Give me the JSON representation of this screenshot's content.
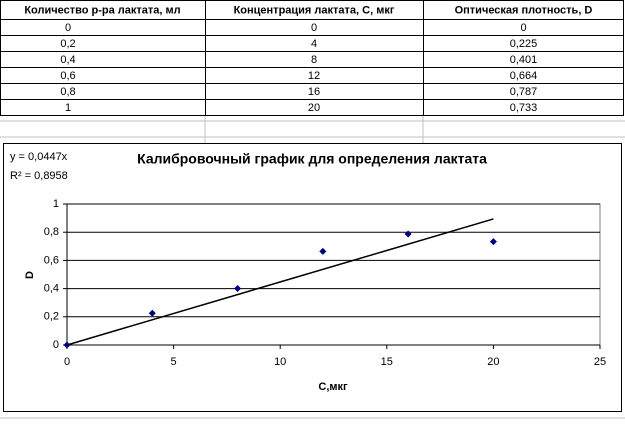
{
  "table": {
    "header": [
      "Количество р-ра лактата, мл",
      "Концентрация лактата, С, мкг",
      "Оптическая плотность, D"
    ],
    "rows": [
      [
        "0",
        "0",
        "0"
      ],
      [
        "0,2",
        "4",
        "0,225"
      ],
      [
        "0,4",
        "8",
        "0,401"
      ],
      [
        "0,6",
        "12",
        "0,664"
      ],
      [
        "0,8",
        "16",
        "0,787"
      ],
      [
        "1",
        "20",
        "0,733"
      ]
    ]
  },
  "chart_data": {
    "type": "scatter",
    "title": "Калибровочный график для определения лактата",
    "x_label": "C,мкг",
    "y_label": "D",
    "x": [
      0,
      4,
      8,
      12,
      16,
      20
    ],
    "values": [
      0,
      0.225,
      0.401,
      0.664,
      0.787,
      0.733
    ],
    "color": "#000080",
    "xlim": [
      0,
      25
    ],
    "xticks": [
      0,
      5,
      10,
      15,
      20,
      25
    ],
    "ylim": [
      0,
      1
    ],
    "yticks": [
      0,
      {
        "value": 0.2,
        "label": "0,2"
      },
      {
        "value": 0.4,
        "label": "0,4"
      },
      {
        "value": 0.6,
        "label": "0,6"
      },
      {
        "value": 0.8,
        "label": "0,8"
      },
      1
    ],
    "grid": true,
    "trendline": {
      "slope": 0.0447,
      "equation": "y = 0,0447x",
      "r_squared": "R² = 0,8958",
      "color": "#000000"
    }
  }
}
